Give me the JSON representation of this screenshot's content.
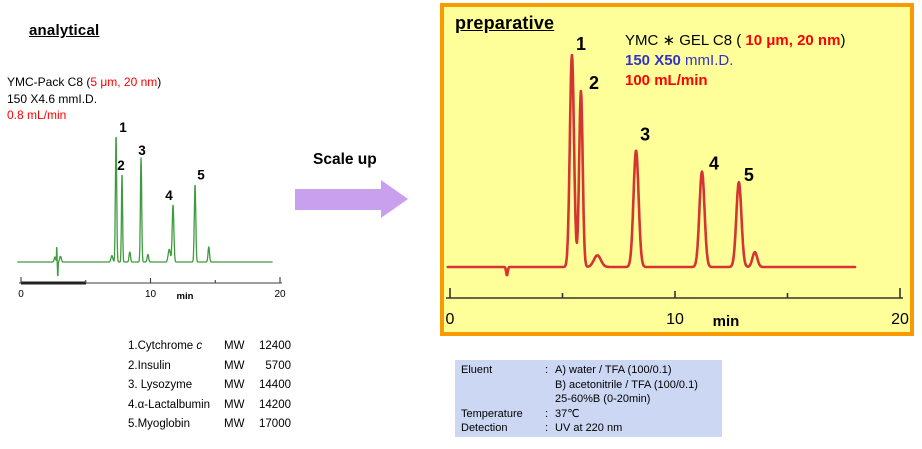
{
  "palette": {
    "red_text": "#ff0000",
    "blue_text": "#3333cc",
    "arrow_purple": "#c9a0ee",
    "prep_box_background": "#ffff99",
    "prep_box_border": "#f89a00",
    "conditions_background": "#ccd7f3"
  },
  "analytical": {
    "title": "analytical",
    "column_info": {
      "line1_prefix": "YMC-Pack C8 (",
      "line1_red": "5 μm, 20 nm",
      "line1_suffix": ")",
      "line2": "150 X4.6 mmI.D.",
      "line3": "0.8 mL/min"
    },
    "compounds": [
      {
        "name": "1.Cytchrome",
        "name_italic": " c",
        "mw_label": "MW",
        "mw": "12400"
      },
      {
        "name": "2.Insulin",
        "name_italic": "",
        "mw_label": "MW",
        "mw": "5700"
      },
      {
        "name": "3. Lysozyme",
        "name_italic": "",
        "mw_label": "MW",
        "mw": "14400"
      },
      {
        "name": "4.α-Lactalbumin",
        "name_italic": "",
        "mw_label": "MW",
        "mw": "14200"
      },
      {
        "name": "5.Myoglobin",
        "name_italic": "",
        "mw_label": "MW",
        "mw": "17000"
      }
    ]
  },
  "scale_up": {
    "label": "Scale up"
  },
  "preparative": {
    "title": "preparative",
    "column_info": {
      "line1_prefix": "YMC ∗ GEL C8 ( ",
      "line1_red": "10 μm, 20 nm",
      "line1_suffix": ")",
      "line2_blue_bold": "150 X50",
      "line2_rest": " mmI.D.",
      "line3": "100 mL/min"
    }
  },
  "conditions": {
    "rows": [
      {
        "label": "Eluent",
        "colon": ":",
        "value": "A) water / TFA (100/0.1)"
      },
      {
        "label": "",
        "colon": "",
        "value": "B) acetonitrile / TFA (100/0.1)"
      },
      {
        "label": "",
        "colon": "",
        "value": "25-60%B (0-20min)"
      },
      {
        "label": "Temperature",
        "colon": ":",
        "value": "37℃"
      },
      {
        "label": "Detection",
        "colon": ":",
        "value": "UV at 220 nm"
      }
    ]
  },
  "chart_data": [
    {
      "id": "analytical",
      "type": "line",
      "title": "analytical chromatogram",
      "color": "#3f9b3f",
      "xlabel": "min",
      "xlim": [
        0,
        20
      ],
      "x_ticks": [
        0,
        5,
        10,
        15,
        20
      ],
      "x_tick_labels": [
        "0",
        "",
        "10",
        "",
        "20"
      ],
      "x_range_shown": [
        -0.25,
        19.4
      ],
      "grid": false,
      "peaks": [
        {
          "label": "1",
          "t": 7.34,
          "height": 1.0,
          "width": 0.07,
          "label_dx": 7,
          "label_dy": -3
        },
        {
          "label": "2",
          "t": 7.8,
          "height": 0.7,
          "width": 0.06,
          "label_dx": -1,
          "label_dy": -3
        },
        {
          "label": "3",
          "t": 9.27,
          "height": 0.82,
          "width": 0.07,
          "label_dx": 1,
          "label_dy": -3
        },
        {
          "label": "4",
          "t": 11.74,
          "height": 0.45,
          "width": 0.09,
          "label_dx": -4,
          "label_dy": -5
        },
        {
          "label": "5",
          "t": 13.44,
          "height": 0.61,
          "width": 0.08,
          "label_dx": 6,
          "label_dy": -5
        }
      ],
      "minor_features": [
        {
          "t": 2.62,
          "height": 0.04,
          "width": 0.08
        },
        {
          "t": 2.76,
          "height": 0.13,
          "width": 0.025
        },
        {
          "t": 2.84,
          "height": -0.12,
          "width": 0.03
        },
        {
          "t": 3.05,
          "height": 0.045,
          "width": 0.09
        },
        {
          "t": 7.02,
          "height": 0.05,
          "width": 0.1
        },
        {
          "t": 8.4,
          "height": 0.08,
          "width": 0.08
        },
        {
          "t": 9.8,
          "height": 0.06,
          "width": 0.08
        },
        {
          "t": 11.45,
          "height": 0.1,
          "width": 0.12
        },
        {
          "t": 14.5,
          "height": 0.12,
          "width": 0.08
        }
      ]
    },
    {
      "id": "preparative",
      "type": "line",
      "title": "preparative chromatogram",
      "color": "#d53434",
      "xlabel": "min",
      "xlim": [
        0,
        20
      ],
      "x_ticks": [
        0,
        5,
        10,
        15,
        20
      ],
      "x_tick_labels": [
        "0",
        "",
        "10",
        "",
        "20"
      ],
      "x_range_shown": [
        -0.1,
        18.0
      ],
      "grid": false,
      "peaks": [
        {
          "label": "1",
          "t": 5.42,
          "height": 1.0,
          "width": 0.13,
          "label_dx": 9,
          "label_dy": -5
        },
        {
          "label": "2",
          "t": 5.82,
          "height": 0.83,
          "width": 0.11,
          "label_dx": 13,
          "label_dy": -2
        },
        {
          "label": "3",
          "t": 8.27,
          "height": 0.55,
          "width": 0.16,
          "label_dx": 9,
          "label_dy": -10
        },
        {
          "label": "4",
          "t": 11.2,
          "height": 0.45,
          "width": 0.16,
          "label_dx": 12,
          "label_dy": -2
        },
        {
          "label": "5",
          "t": 12.84,
          "height": 0.4,
          "width": 0.16,
          "label_dx": 10,
          "label_dy": -1
        }
      ],
      "minor_features": [
        {
          "t": 2.53,
          "height": -0.04,
          "width": 0.05
        },
        {
          "t": 6.55,
          "height": 0.055,
          "width": 0.22
        },
        {
          "t": 13.55,
          "height": 0.07,
          "width": 0.15
        }
      ]
    }
  ]
}
